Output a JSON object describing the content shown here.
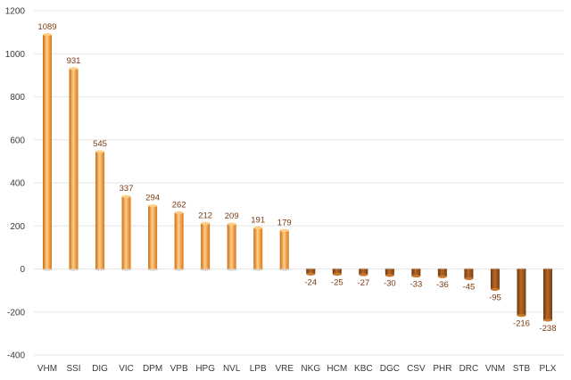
{
  "chart_data": {
    "type": "bar",
    "title": "",
    "xlabel": "",
    "ylabel": "",
    "categories": [
      "VHM",
      "SSI",
      "DIG",
      "VIC",
      "DPM",
      "VPB",
      "HPG",
      "NVL",
      "LPB",
      "VRE",
      "NKG",
      "HCM",
      "KBC",
      "DGC",
      "CSV",
      "PHR",
      "DRC",
      "VNM",
      "STB",
      "PLX"
    ],
    "values": [
      1089,
      931,
      545,
      337,
      294,
      262,
      212,
      209,
      191,
      179,
      -24,
      -25,
      -27,
      -30,
      -33,
      -36,
      -45,
      -95,
      -216,
      -238
    ],
    "value_labels": [
      "1089",
      "931",
      "545",
      "337",
      "294",
      "262",
      "212",
      "209",
      "191",
      "179",
      "-24",
      "-25",
      "-27",
      "-30",
      "-33",
      "-36",
      "-45",
      "-95",
      "-216",
      "-238"
    ],
    "ylim": [
      -400,
      1200
    ],
    "yticks": [
      -400,
      -200,
      0,
      200,
      400,
      600,
      800,
      1000,
      1200
    ],
    "ytick_labels": [
      "-400",
      "-200",
      "0",
      "200",
      "400",
      "600",
      "800",
      "1000",
      "1200"
    ],
    "grid": true,
    "legend": "none",
    "colors": {
      "positive_bar": "#f39a2d",
      "positive_bar_highlight": "#ffd08a",
      "negative_bar": "#8a4a12",
      "negative_bar_highlight": "#c77a30",
      "data_label": "#7a3a12",
      "gridline": "#e6e6e6"
    }
  }
}
